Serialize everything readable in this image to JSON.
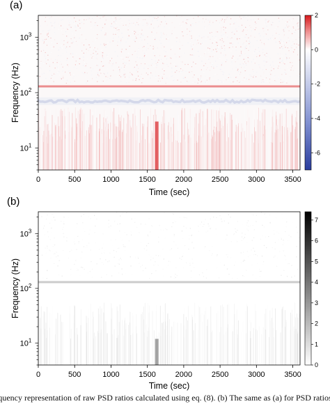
{
  "chart_data": [
    {
      "type": "heatmap",
      "panel_label": "(a)",
      "xlabel": "Time (sec)",
      "ylabel": "Frequency (Hz)",
      "xlim": [
        0,
        3600
      ],
      "x_ticks": [
        0,
        500,
        1000,
        1500,
        2000,
        2500,
        3000,
        3500
      ],
      "y_scale": "log",
      "ylim": [
        4,
        2500
      ],
      "y_ticks": [
        {
          "value": 10,
          "base": "10",
          "exp": "1"
        },
        {
          "value": 100,
          "base": "10",
          "exp": "2"
        },
        {
          "value": 1000,
          "base": "10",
          "exp": "3"
        }
      ],
      "colorbar": {
        "range": [
          -7,
          2
        ],
        "ticks": [
          2,
          0,
          -2,
          -4,
          -6
        ],
        "colormap": "diverging",
        "colors": {
          "low": "#2a3d9e",
          "mid": "#ffffff",
          "high": "#d7191c"
        }
      },
      "features": [
        {
          "kind": "horizontal-line",
          "frequency": 130,
          "value": 1.3
        },
        {
          "kind": "horizontal-band",
          "frequency_range": [
            60,
            82
          ],
          "value": -2.0
        },
        {
          "kind": "vertical-streak",
          "time": 1630,
          "frequency_range": [
            4,
            30
          ],
          "value": 1.8
        }
      ]
    },
    {
      "type": "heatmap",
      "panel_label": "(b)",
      "xlabel": "Time (sec)",
      "ylabel": "Frequency (Hz)",
      "xlim": [
        0,
        3600
      ],
      "x_ticks": [
        0,
        500,
        1000,
        1500,
        2000,
        2500,
        3000,
        3500
      ],
      "y_scale": "log",
      "ylim": [
        4,
        2500
      ],
      "y_ticks": [
        {
          "value": 10,
          "base": "10",
          "exp": "1"
        },
        {
          "value": 100,
          "base": "10",
          "exp": "2"
        },
        {
          "value": 1000,
          "base": "10",
          "exp": "3"
        }
      ],
      "colorbar": {
        "range": [
          0,
          7.4
        ],
        "ticks": [
          7,
          6,
          5,
          4,
          3,
          2,
          1,
          0
        ],
        "colormap": "sequential",
        "colors": {
          "low": "#ffffff",
          "high": "#000000"
        }
      },
      "features": [
        {
          "kind": "horizontal-line",
          "frequency": 130,
          "value": 2.0
        },
        {
          "kind": "vertical-streak",
          "time": 1630,
          "frequency_range": [
            4,
            12
          ],
          "value": 3.5
        }
      ]
    }
  ],
  "caption": "equency representation of raw PSD ratios calculated using eq. (8). (b) The same as (a) for PSD ratios ar"
}
